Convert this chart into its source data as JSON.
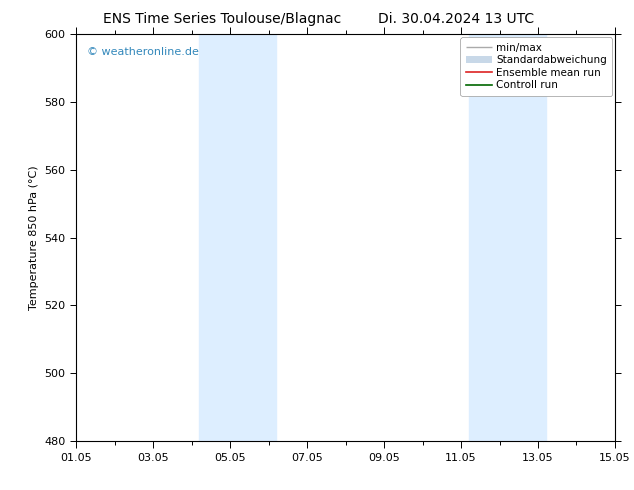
{
  "title_left": "ENS Time Series Toulouse/Blagnac",
  "title_right": "Di. 30.04.2024 13 UTC",
  "ylabel": "Temperature 850 hPa (°C)",
  "ylim": [
    480,
    600
  ],
  "yticks": [
    480,
    500,
    520,
    540,
    560,
    580,
    600
  ],
  "xlim_start": 0,
  "xlim_end": 14,
  "xtick_positions": [
    0,
    2,
    4,
    6,
    8,
    10,
    12,
    14
  ],
  "xtick_labels": [
    "01.05",
    "03.05",
    "05.05",
    "07.05",
    "09.05",
    "11.05",
    "13.05",
    "15.05"
  ],
  "shade_bands": [
    {
      "xmin": 3.2,
      "xmax": 5.2
    },
    {
      "xmin": 10.2,
      "xmax": 12.2
    }
  ],
  "shade_color": "#ddeeff",
  "watermark": "© weatheronline.de",
  "watermark_color": "#3388bb",
  "legend_entries": [
    {
      "label": "min/max",
      "color": "#aaaaaa",
      "lw": 1.0
    },
    {
      "label": "Standardabweichung",
      "color": "#c8d8e8",
      "lw": 6
    },
    {
      "label": "Ensemble mean run",
      "color": "#dd2222",
      "lw": 1.2
    },
    {
      "label": "Controll run",
      "color": "#006600",
      "lw": 1.2
    }
  ],
  "background_color": "#ffffff",
  "plot_background": "#ffffff",
  "title_fontsize": 10,
  "axis_label_fontsize": 8,
  "tick_fontsize": 8,
  "watermark_fontsize": 8,
  "legend_fontsize": 7.5
}
